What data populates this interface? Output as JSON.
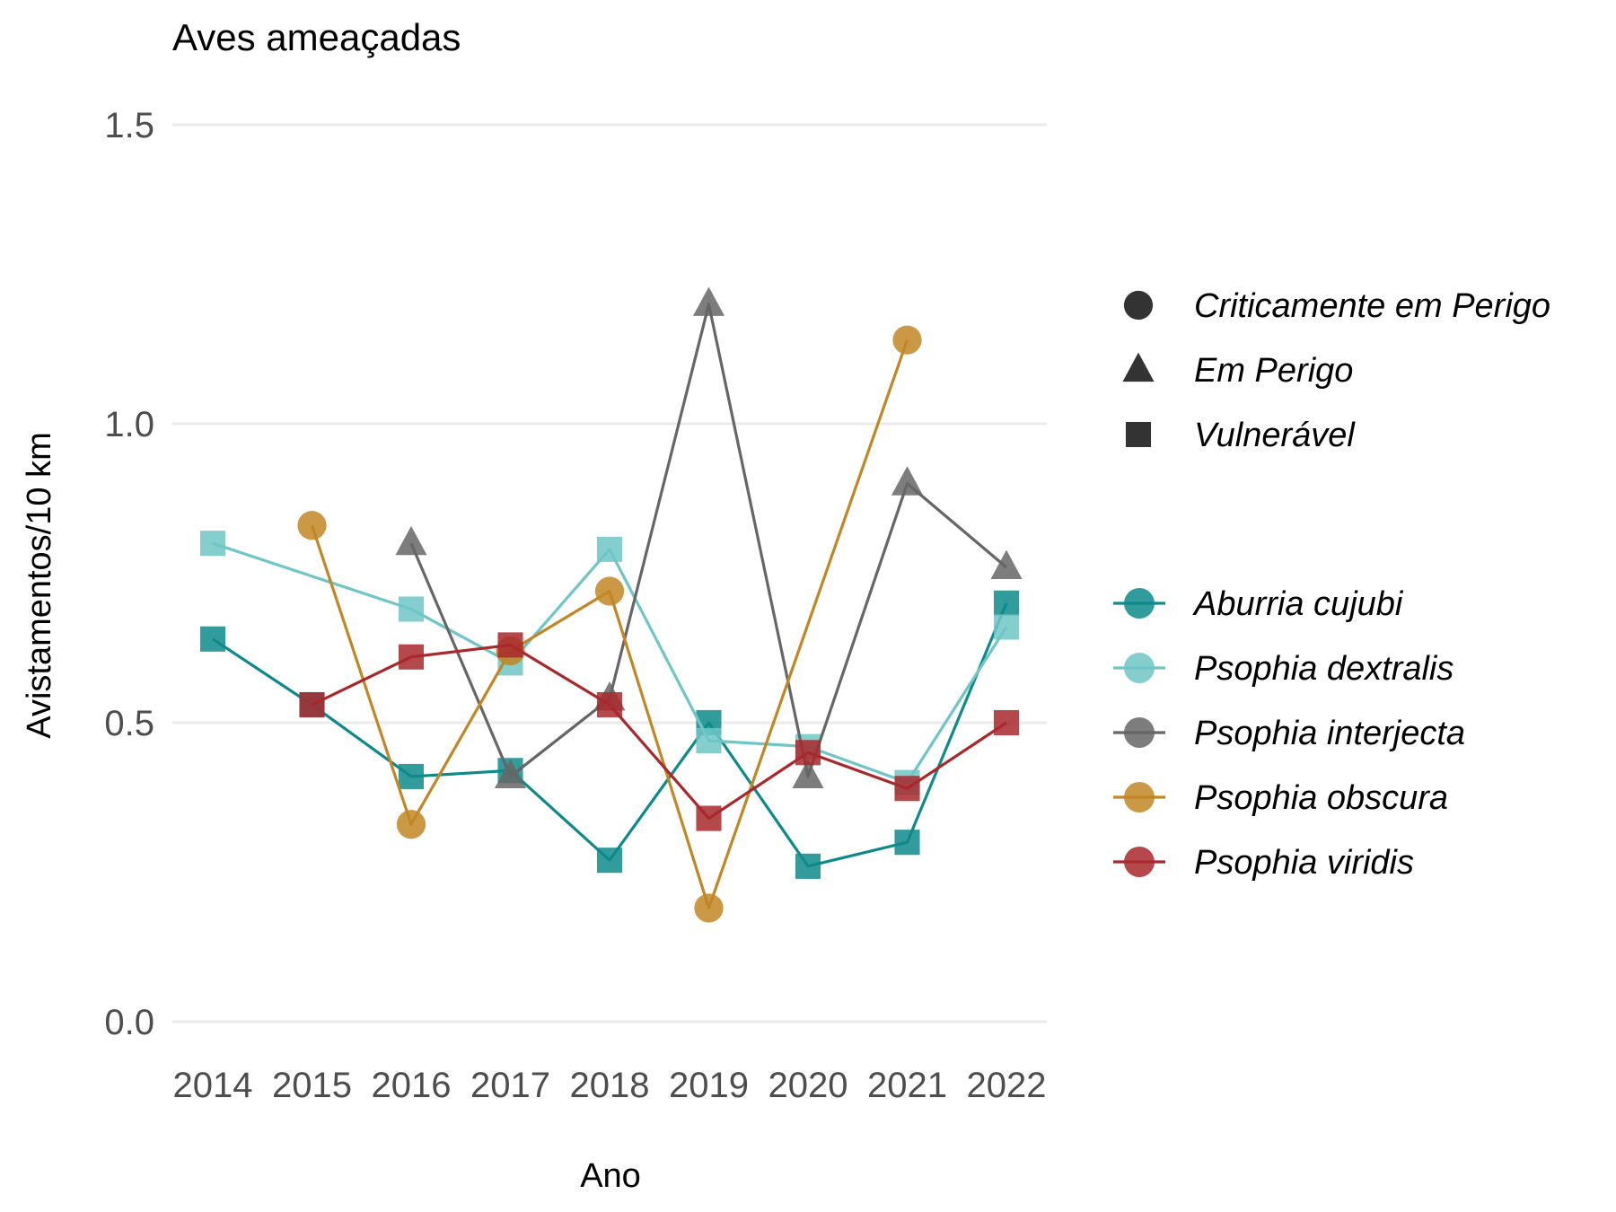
{
  "chart_data": {
    "type": "line",
    "title": "Aves ameaçadas",
    "xlabel": "Ano",
    "ylabel": "Avistamentos/10 km",
    "ylim": [
      -0.05,
      1.6
    ],
    "yticks": [
      0.0,
      0.5,
      1.0,
      1.5
    ],
    "ytick_labels": [
      "0.0",
      "0.5",
      "1.0",
      "1.5"
    ],
    "x": [
      2014,
      2015,
      2016,
      2017,
      2018,
      2019,
      2020,
      2021,
      2022
    ],
    "xtick_labels": [
      "2014",
      "2015",
      "2016",
      "2017",
      "2018",
      "2019",
      "2020",
      "2021",
      "2022"
    ],
    "grid": "horizontal",
    "legend_position": "right",
    "shape_legend": [
      {
        "label": "Criticamente em Perigo",
        "shape": "circle"
      },
      {
        "label": "Em Perigo",
        "shape": "triangle"
      },
      {
        "label": "Vulnerável",
        "shape": "square"
      }
    ],
    "series": [
      {
        "name": "Aburria cujubi",
        "color": "#0e8a8a",
        "shape": "square",
        "points": [
          [
            2014,
            0.64
          ],
          [
            2015,
            0.53
          ],
          [
            2016,
            0.41
          ],
          [
            2017,
            0.42
          ],
          [
            2018,
            0.27
          ],
          [
            2019,
            0.5
          ],
          [
            2020,
            0.26
          ],
          [
            2021,
            0.3
          ],
          [
            2022,
            0.7
          ]
        ]
      },
      {
        "name": "Psophia dextralis",
        "color": "#6fc6c6",
        "shape": "square",
        "points": [
          [
            2014,
            0.8
          ],
          [
            2016,
            0.69
          ],
          [
            2017,
            0.6
          ],
          [
            2018,
            0.79
          ],
          [
            2019,
            0.47
          ],
          [
            2020,
            0.46
          ],
          [
            2021,
            0.4
          ],
          [
            2022,
            0.66
          ]
        ]
      },
      {
        "name": "Psophia interjecta",
        "color": "#666666",
        "shape": "triangle",
        "points": [
          [
            2016,
            0.8
          ],
          [
            2017,
            0.41
          ],
          [
            2018,
            0.54
          ],
          [
            2019,
            1.2
          ],
          [
            2020,
            0.41
          ],
          [
            2021,
            0.9
          ],
          [
            2022,
            0.76
          ]
        ]
      },
      {
        "name": "Psophia obscura",
        "color": "#c28625",
        "shape": "circle",
        "points": [
          [
            2015,
            0.83
          ],
          [
            2016,
            0.33
          ],
          [
            2017,
            0.62
          ],
          [
            2018,
            0.72
          ],
          [
            2019,
            0.19
          ],
          [
            2021,
            1.14
          ]
        ]
      },
      {
        "name": "Psophia viridis",
        "color": "#a8282c",
        "shape": "square",
        "points": [
          [
            2015,
            0.53
          ],
          [
            2016,
            0.61
          ],
          [
            2017,
            0.63
          ],
          [
            2018,
            0.53
          ],
          [
            2019,
            0.34
          ],
          [
            2020,
            0.45
          ],
          [
            2021,
            0.39
          ],
          [
            2022,
            0.5
          ]
        ]
      }
    ]
  }
}
